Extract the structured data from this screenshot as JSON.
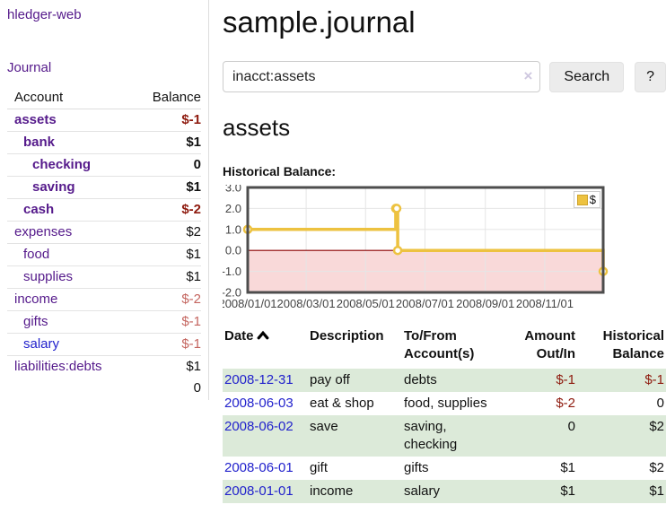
{
  "colors": {
    "link_purple": "#551a8b",
    "link_blue": "#2222cc",
    "negative_strong": "#8e1a0e",
    "negative_soft": "#c4655f",
    "row_stripe_green": "#dcead9",
    "chart_series_gold": "#edc240",
    "chart_negative_region": "#f9d9d9",
    "chart_zero_line": "#8b0000"
  },
  "sidebar": {
    "app_title": "hledger-web",
    "nav": [
      {
        "label": "Journal"
      }
    ],
    "accounts_table": {
      "headers": [
        "Account",
        "Balance"
      ],
      "rows": [
        {
          "account": "assets",
          "balance": "$-1",
          "indent": 0,
          "bold": true,
          "balance_style": "neg-strong",
          "link": "purple"
        },
        {
          "account": "bank",
          "balance": "$1",
          "indent": 1,
          "bold": true,
          "balance_style": "plain",
          "link": "purple"
        },
        {
          "account": "checking",
          "balance": "0",
          "indent": 2,
          "bold": true,
          "balance_style": "plain",
          "link": "purple"
        },
        {
          "account": "saving",
          "balance": "$1",
          "indent": 2,
          "bold": true,
          "balance_style": "plain",
          "link": "purple"
        },
        {
          "account": "cash",
          "balance": "$-2",
          "indent": 1,
          "bold": true,
          "balance_style": "neg-strong",
          "link": "purple"
        },
        {
          "account": "expenses",
          "balance": "$2",
          "indent": 0,
          "bold": false,
          "balance_style": "plain",
          "link": "purple"
        },
        {
          "account": "food",
          "balance": "$1",
          "indent": 1,
          "bold": false,
          "balance_style": "plain",
          "link": "purple"
        },
        {
          "account": "supplies",
          "balance": "$1",
          "indent": 1,
          "bold": false,
          "balance_style": "plain",
          "link": "purple"
        },
        {
          "account": "income",
          "balance": "$-2",
          "indent": 0,
          "bold": false,
          "balance_style": "neg-soft",
          "link": "purple"
        },
        {
          "account": "gifts",
          "balance": "$-1",
          "indent": 1,
          "bold": false,
          "balance_style": "neg-soft",
          "link": "purple"
        },
        {
          "account": "salary",
          "balance": "$-1",
          "indent": 1,
          "bold": false,
          "balance_style": "neg-soft",
          "link": "blue"
        },
        {
          "account": "liabilities:debts",
          "balance": "$1",
          "indent": 0,
          "bold": false,
          "balance_style": "plain",
          "link": "purple"
        }
      ],
      "total": "0"
    }
  },
  "main": {
    "title": "sample.journal",
    "search": {
      "value": "inacct:assets",
      "clear_icon": "×",
      "search_button": "Search",
      "help_button": "?"
    },
    "account_heading": "assets",
    "chart_title": "Historical Balance:"
  },
  "chart_data": {
    "type": "line",
    "step": true,
    "title": "Historical Balance",
    "legend": {
      "label": "$",
      "position": "top-right"
    },
    "x_start": "2008-01-01",
    "x_end": "2008-12-31",
    "points": [
      {
        "date": "2008-01-01",
        "value": 1
      },
      {
        "date": "2008-06-01",
        "value": 2
      },
      {
        "date": "2008-06-02",
        "value": 2
      },
      {
        "date": "2008-06-03",
        "value": 0
      },
      {
        "date": "2008-12-31",
        "value": -1
      }
    ],
    "x_ticks": [
      {
        "date": "2008-01-01",
        "label": "2008/01/01"
      },
      {
        "date": "2008-03-01",
        "label": "2008/03/01"
      },
      {
        "date": "2008-05-01",
        "label": "2008/05/01"
      },
      {
        "date": "2008-07-01",
        "label": "2008/07/01"
      },
      {
        "date": "2008-09-01",
        "label": "2008/09/01"
      },
      {
        "date": "2008-11-01",
        "label": "2008/11/01"
      }
    ],
    "y_ticks": [
      {
        "value": 3,
        "label": "3.0"
      },
      {
        "value": 2,
        "label": "2.0"
      },
      {
        "value": 1,
        "label": "1.0"
      },
      {
        "value": 0,
        "label": "0.0"
      },
      {
        "value": -1,
        "label": "-1.0"
      },
      {
        "value": -2,
        "label": "-2.0"
      }
    ],
    "ylim": [
      -2,
      3
    ],
    "grid": true,
    "negative_region_shaded": true
  },
  "register": {
    "headers": {
      "date": "Date",
      "description": "Description",
      "accounts": "To/From Account(s)",
      "amount": "Amount Out/In",
      "balance": "Historical Balance"
    },
    "sort_icon": "chevron-up",
    "rows": [
      {
        "date": "2008-12-31",
        "description": "pay off",
        "accounts": "debts",
        "amount": "$-1",
        "amount_neg": true,
        "balance": "$-1",
        "balance_neg": true
      },
      {
        "date": "2008-06-03",
        "description": "eat & shop",
        "accounts": "food, supplies",
        "amount": "$-2",
        "amount_neg": true,
        "balance": "0",
        "balance_neg": false
      },
      {
        "date": "2008-06-02",
        "description": "save",
        "accounts": "saving,\nchecking",
        "amount": "0",
        "amount_neg": false,
        "balance": "$2",
        "balance_neg": false
      },
      {
        "date": "2008-06-01",
        "description": "gift",
        "accounts": "gifts",
        "amount": "$1",
        "amount_neg": false,
        "balance": "$2",
        "balance_neg": false
      },
      {
        "date": "2008-01-01",
        "description": "income",
        "accounts": "salary",
        "amount": "$1",
        "amount_neg": false,
        "balance": "$1",
        "balance_neg": false
      }
    ]
  }
}
